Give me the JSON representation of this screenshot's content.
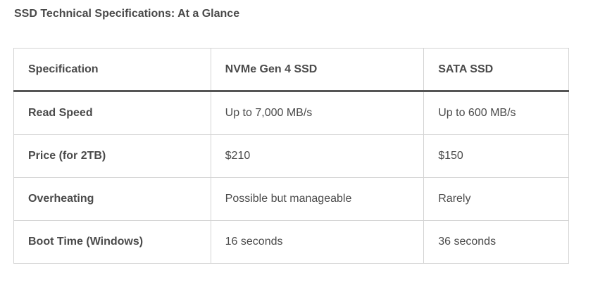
{
  "title": "SSD Technical Specifications: At a Glance",
  "table": {
    "headers": [
      "Specification",
      "NVMe Gen 4 SSD",
      "SATA SSD"
    ],
    "rows": [
      [
        "Read Speed",
        "Up to 7,000 MB/s",
        "Up to 600 MB/s"
      ],
      [
        "Price (for 2TB)",
        "$210",
        "$150"
      ],
      [
        "Overheating",
        "Possible but manageable",
        "Rarely"
      ],
      [
        "Boot Time (Windows)",
        "16 seconds",
        "36 seconds"
      ]
    ]
  }
}
